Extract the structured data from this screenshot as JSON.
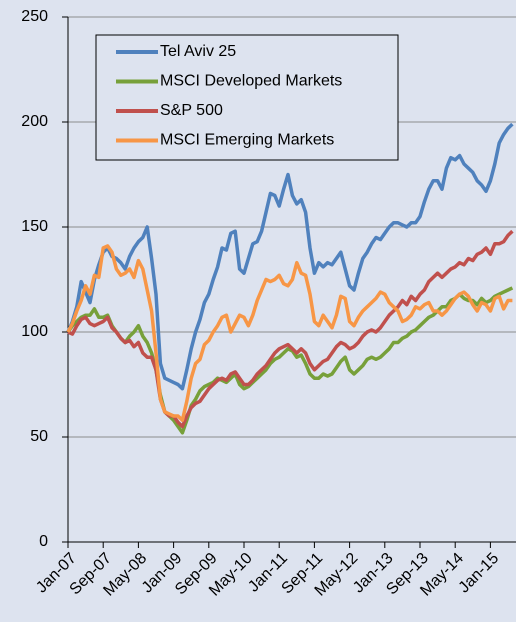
{
  "chart_data": {
    "type": "line",
    "categories": [
      "Jan-07",
      null,
      null,
      null,
      null,
      null,
      null,
      null,
      "Sep-07",
      null,
      null,
      null,
      null,
      null,
      null,
      null,
      "May-08",
      null,
      null,
      null,
      null,
      null,
      null,
      null,
      "Jan-09",
      null,
      null,
      null,
      null,
      null,
      null,
      null,
      "Sep-09",
      null,
      null,
      null,
      null,
      null,
      null,
      null,
      "May-10",
      null,
      null,
      null,
      null,
      null,
      null,
      null,
      "Jan-11",
      null,
      null,
      null,
      null,
      null,
      null,
      null,
      "Sep-11",
      null,
      null,
      null,
      null,
      null,
      null,
      null,
      "May-12",
      null,
      null,
      null,
      null,
      null,
      null,
      null,
      "Jan-13",
      null,
      null,
      null,
      null,
      null,
      null,
      null,
      "Sep-13",
      null,
      null,
      null,
      null,
      null,
      null,
      null,
      "May-14",
      null,
      null,
      null,
      null,
      null,
      null,
      null,
      "Jan-15",
      null,
      null,
      null,
      null,
      null
    ],
    "series": [
      {
        "name": "Tel Aviv 25",
        "color": "#4f81bd",
        "values": [
          100,
          105,
          112,
          124,
          119,
          114,
          125,
          132,
          138,
          140,
          136,
          135,
          133,
          130,
          136,
          140,
          143,
          145,
          150,
          135,
          118,
          85,
          78,
          77,
          76,
          75,
          73,
          82,
          92,
          100,
          106,
          114,
          118,
          125,
          131,
          140,
          139,
          147,
          148,
          130,
          128,
          135,
          142,
          143,
          148,
          157,
          166,
          165,
          160,
          168,
          175,
          165,
          161,
          163,
          157,
          140,
          128,
          133,
          131,
          133,
          132,
          135,
          138,
          130,
          122,
          120,
          128,
          135,
          138,
          142,
          145,
          144,
          147,
          150,
          152,
          152,
          151,
          150,
          152,
          152,
          155,
          162,
          168,
          172,
          172,
          168,
          178,
          183,
          182,
          184,
          180,
          178,
          176,
          172,
          170,
          167,
          172,
          180,
          190,
          194,
          197,
          199
        ]
      },
      {
        "name": "MSCI Developed Markets",
        "color": "#77a03a",
        "values": [
          100,
          103,
          105,
          107,
          108,
          108,
          111,
          107,
          107,
          108,
          103,
          100,
          97,
          95,
          98,
          100,
          103,
          98,
          95,
          90,
          82,
          70,
          62,
          60,
          58,
          55,
          52,
          58,
          65,
          68,
          72,
          74,
          75,
          76,
          78,
          77,
          76,
          78,
          80,
          75,
          73,
          74,
          76,
          78,
          80,
          82,
          85,
          87,
          88,
          90,
          92,
          91,
          88,
          89,
          85,
          80,
          78,
          78,
          80,
          79,
          80,
          83,
          86,
          88,
          82,
          80,
          82,
          84,
          87,
          88,
          87,
          88,
          90,
          92,
          95,
          95,
          97,
          98,
          100,
          101,
          103,
          105,
          107,
          108,
          110,
          112,
          112,
          115,
          116,
          118,
          116,
          115,
          115,
          113,
          116,
          114,
          115,
          117,
          118,
          119,
          120,
          121
        ]
      },
      {
        "name": "S&P 500",
        "color": "#c0504d",
        "values": [
          100,
          99,
          103,
          106,
          107,
          104,
          103,
          104,
          105,
          107,
          102,
          100,
          97,
          95,
          96,
          93,
          95,
          90,
          88,
          88,
          82,
          68,
          62,
          60,
          60,
          57,
          55,
          60,
          64,
          66,
          67,
          70,
          73,
          75,
          77,
          78,
          77,
          80,
          81,
          78,
          75,
          75,
          77,
          80,
          82,
          84,
          87,
          90,
          92,
          93,
          94,
          92,
          90,
          92,
          90,
          85,
          82,
          84,
          86,
          87,
          90,
          93,
          95,
          94,
          92,
          93,
          95,
          98,
          100,
          101,
          100,
          102,
          105,
          108,
          110,
          112,
          115,
          113,
          117,
          115,
          118,
          120,
          124,
          126,
          128,
          126,
          128,
          130,
          131,
          133,
          132,
          135,
          134,
          137,
          138,
          140,
          137,
          142,
          142,
          143,
          146,
          148
        ]
      },
      {
        "name": "MSCI Emerging Markets",
        "color": "#f79646",
        "values": [
          100,
          104,
          110,
          115,
          122,
          118,
          127,
          126,
          140,
          141,
          138,
          130,
          127,
          128,
          130,
          126,
          134,
          130,
          120,
          110,
          90,
          68,
          62,
          61,
          60,
          60,
          58,
          67,
          78,
          85,
          87,
          94,
          96,
          100,
          103,
          107,
          108,
          100,
          104,
          108,
          107,
          103,
          108,
          115,
          120,
          125,
          124,
          125,
          127,
          123,
          122,
          125,
          133,
          128,
          127,
          118,
          105,
          103,
          108,
          105,
          102,
          108,
          117,
          116,
          105,
          103,
          107,
          110,
          112,
          114,
          116,
          119,
          118,
          114,
          112,
          110,
          105,
          106,
          108,
          112,
          111,
          113,
          114,
          110,
          110,
          108,
          110,
          113,
          116,
          118,
          119,
          117,
          113,
          110,
          114,
          113,
          110,
          116,
          117,
          111,
          115,
          115
        ]
      }
    ],
    "ylim": [
      0,
      250
    ],
    "yticks": [
      0,
      50,
      100,
      150,
      200,
      250
    ],
    "grid": true,
    "legend": "top-left"
  }
}
